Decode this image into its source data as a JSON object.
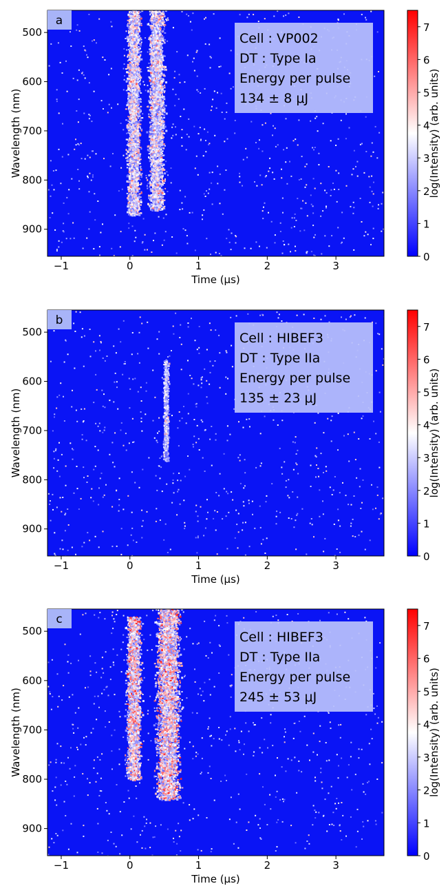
{
  "chart_data": [
    {
      "type": "heatmap",
      "panel_label": "a",
      "xlabel": "Time (μs)",
      "ylabel": "Wavelength (nm)",
      "xlim": [
        -1.2,
        3.7
      ],
      "ylim": [
        955,
        455
      ],
      "x_ticks": [
        -1,
        0,
        1,
        2,
        3
      ],
      "x_tick_labels": [
        "−1",
        "0",
        "1",
        "2",
        "3"
      ],
      "y_ticks": [
        500,
        600,
        700,
        800,
        900
      ],
      "y_tick_labels": [
        "500",
        "600",
        "700",
        "800",
        "900"
      ],
      "colorbar": {
        "label": "log(Intensity) (arb. units)",
        "range": [
          0,
          7.5
        ],
        "ticks": [
          0,
          1,
          2,
          3,
          4,
          5,
          6,
          7
        ],
        "tick_labels": [
          "0",
          "1",
          "2",
          "3",
          "4",
          "5",
          "6",
          "7"
        ],
        "colormap": "bwr"
      },
      "annotation": [
        "Cell : VP002",
        "DT : Type Ia",
        "Energy per pulse",
        "134 ± 8 μJ"
      ],
      "emission_bands": [
        {
          "time_us": 0.05,
          "halfwidth_us": 0.13,
          "wl_min": 455,
          "wl_max": 870,
          "peak_log_intensity": 5.0
        },
        {
          "time_us": 0.38,
          "halfwidth_us": 0.15,
          "wl_min": 455,
          "wl_max": 860,
          "peak_log_intensity": 5.0
        }
      ]
    },
    {
      "type": "heatmap",
      "panel_label": "b",
      "xlabel": "Time (μs)",
      "ylabel": "Wavelength (nm)",
      "xlim": [
        -1.2,
        3.7
      ],
      "ylim": [
        955,
        455
      ],
      "x_ticks": [
        -1,
        0,
        1,
        2,
        3
      ],
      "x_tick_labels": [
        "−1",
        "0",
        "1",
        "2",
        "3"
      ],
      "y_ticks": [
        500,
        600,
        700,
        800,
        900
      ],
      "y_tick_labels": [
        "500",
        "600",
        "700",
        "800",
        "900"
      ],
      "colorbar": {
        "label": "log(Intensity) (arb. units)",
        "range": [
          0,
          7.5
        ],
        "ticks": [
          0,
          1,
          2,
          3,
          4,
          5,
          6,
          7
        ],
        "tick_labels": [
          "0",
          "1",
          "2",
          "3",
          "4",
          "5",
          "6",
          "7"
        ],
        "colormap": "bwr"
      },
      "annotation": [
        "Cell : HIBEF3",
        "DT : Type IIa",
        "Energy per pulse",
        "135 ± 23 μJ"
      ],
      "emission_bands": [
        {
          "time_us": 0.52,
          "halfwidth_us": 0.05,
          "wl_min": 555,
          "wl_max": 760,
          "peak_log_intensity": 4.0
        }
      ]
    },
    {
      "type": "heatmap",
      "panel_label": "c",
      "xlabel": "Time (μs)",
      "ylabel": "Wavelength (nm)",
      "xlim": [
        -1.2,
        3.7
      ],
      "ylim": [
        955,
        455
      ],
      "x_ticks": [
        -1,
        0,
        1,
        2,
        3
      ],
      "x_tick_labels": [
        "−1",
        "0",
        "1",
        "2",
        "3"
      ],
      "y_ticks": [
        500,
        600,
        700,
        800,
        900
      ],
      "y_tick_labels": [
        "500",
        "600",
        "700",
        "800",
        "900"
      ],
      "colorbar": {
        "label": "log(Intensity) (arb. units)",
        "range": [
          0,
          7.5
        ],
        "ticks": [
          0,
          1,
          2,
          3,
          4,
          5,
          6,
          7
        ],
        "tick_labels": [
          "0",
          "1",
          "2",
          "3",
          "4",
          "5",
          "6",
          "7"
        ],
        "colormap": "bwr"
      },
      "annotation": [
        "Cell : HIBEF3",
        "DT : Type IIa",
        "Energy per pulse",
        "245 ± 53 μJ"
      ],
      "emission_bands": [
        {
          "time_us": 0.05,
          "halfwidth_us": 0.14,
          "wl_min": 470,
          "wl_max": 800,
          "peak_log_intensity": 6.0
        },
        {
          "time_us": 0.55,
          "halfwidth_us": 0.22,
          "wl_min": 455,
          "wl_max": 840,
          "peak_log_intensity": 6.0
        }
      ]
    }
  ]
}
